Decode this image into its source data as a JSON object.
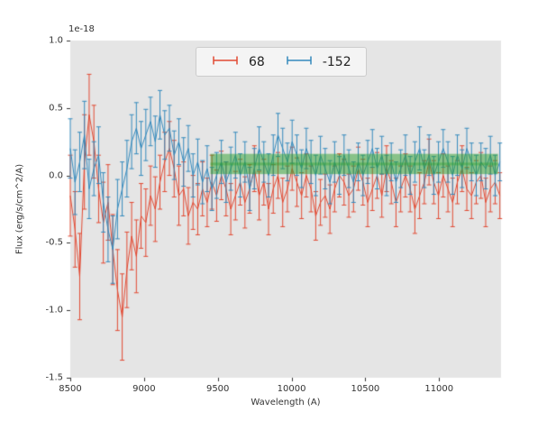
{
  "chart_data": {
    "type": "line",
    "subtype": "errorbar",
    "title": "",
    "xlabel": "Wavelength (A)",
    "ylabel": "Flux (erg/s/cm^2/A)",
    "offset_label": "1e-18",
    "xlim": [
      8500,
      11420
    ],
    "ylim": [
      -1.5,
      1.0
    ],
    "xticks": [
      8500,
      9000,
      9500,
      10000,
      10500,
      11000
    ],
    "xtick_labels": [
      "8500",
      "9000",
      "9500",
      "10000",
      "10500",
      "11000"
    ],
    "yticks": [
      -1.5,
      -1.0,
      -0.5,
      0.0,
      0.5,
      1.0
    ],
    "ytick_labels": [
      "-1.5",
      "-1.0",
      "-0.5",
      "0.0",
      "0.5",
      "1.0"
    ],
    "grid": false,
    "axes_background": "#e5e5e5",
    "legend_position": "upper center",
    "band": {
      "x0": 9450,
      "x1": 11400,
      "y0": 0.01,
      "y1": 0.16,
      "center_y": 0.085,
      "color": "#2ca02c",
      "alpha": 0.5
    },
    "x": [
      8500,
      8532,
      8564,
      8596,
      8628,
      8660,
      8692,
      8724,
      8756,
      8788,
      8820,
      8852,
      8884,
      8916,
      8948,
      8980,
      9012,
      9044,
      9076,
      9108,
      9140,
      9172,
      9204,
      9236,
      9268,
      9300,
      9332,
      9364,
      9396,
      9428,
      9460,
      9492,
      9524,
      9556,
      9588,
      9620,
      9652,
      9684,
      9716,
      9748,
      9780,
      9812,
      9844,
      9876,
      9908,
      9940,
      9972,
      10004,
      10036,
      10068,
      10100,
      10132,
      10164,
      10196,
      10228,
      10260,
      10292,
      10324,
      10356,
      10388,
      10420,
      10452,
      10484,
      10516,
      10548,
      10580,
      10612,
      10644,
      10676,
      10708,
      10740,
      10772,
      10804,
      10836,
      10868,
      10900,
      10932,
      10964,
      10996,
      11028,
      11060,
      11092,
      11124,
      11156,
      11188,
      11220,
      11252,
      11284,
      11316,
      11348,
      11380,
      11412
    ],
    "series": [
      {
        "name": "68",
        "color": "#e24a33",
        "y": [
          -0.15,
          -0.4,
          -0.75,
          0.1,
          0.45,
          0.25,
          -0.1,
          -0.35,
          -0.2,
          -0.55,
          -0.85,
          -1.05,
          -0.7,
          -0.45,
          -0.6,
          -0.3,
          -0.35,
          -0.15,
          -0.25,
          -0.05,
          0.1,
          0.2,
          0.05,
          -0.15,
          -0.1,
          -0.3,
          -0.2,
          -0.25,
          -0.1,
          -0.2,
          -0.05,
          -0.15,
          0.0,
          -0.1,
          -0.25,
          -0.15,
          -0.05,
          -0.2,
          -0.1,
          0.05,
          -0.15,
          -0.05,
          -0.25,
          -0.1,
          0.0,
          -0.2,
          -0.1,
          0.05,
          -0.05,
          -0.15,
          0.0,
          -0.1,
          -0.3,
          -0.2,
          -0.15,
          -0.25,
          -0.1,
          0.0,
          -0.05,
          -0.15,
          -0.1,
          0.05,
          -0.05,
          -0.2,
          -0.1,
          0.0,
          -0.15,
          0.05,
          -0.05,
          -0.2,
          -0.1,
          0.0,
          -0.1,
          -0.25,
          -0.15,
          -0.05,
          0.1,
          -0.05,
          -0.15,
          0.0,
          -0.1,
          -0.2,
          -0.05,
          0.05,
          -0.1,
          -0.15,
          -0.05,
          0.0,
          -0.2,
          -0.1,
          -0.05,
          -0.15
        ],
        "yerr": [
          0.3,
          0.28,
          0.32,
          0.35,
          0.3,
          0.27,
          0.25,
          0.3,
          0.28,
          0.26,
          0.3,
          0.32,
          0.28,
          0.25,
          0.27,
          0.24,
          0.25,
          0.22,
          0.24,
          0.2,
          0.22,
          0.2,
          0.21,
          0.22,
          0.2,
          0.21,
          0.2,
          0.19,
          0.2,
          0.18,
          0.2,
          0.19,
          0.18,
          0.2,
          0.19,
          0.18,
          0.17,
          0.19,
          0.18,
          0.17,
          0.18,
          0.17,
          0.19,
          0.18,
          0.17,
          0.18,
          0.17,
          0.16,
          0.18,
          0.17,
          0.16,
          0.17,
          0.18,
          0.17,
          0.16,
          0.18,
          0.17,
          0.16,
          0.17,
          0.16,
          0.17,
          0.16,
          0.17,
          0.18,
          0.16,
          0.17,
          0.16,
          0.17,
          0.16,
          0.18,
          0.17,
          0.16,
          0.17,
          0.18,
          0.17,
          0.16,
          0.17,
          0.16,
          0.17,
          0.16,
          0.17,
          0.18,
          0.16,
          0.17,
          0.16,
          0.17,
          0.16,
          0.17,
          0.18,
          0.17,
          0.16,
          0.17
        ]
      },
      {
        "name": "-152",
        "color": "#348abd",
        "y": [
          0.2,
          -0.05,
          0.1,
          0.3,
          -0.1,
          0.05,
          0.15,
          -0.2,
          -0.4,
          -0.55,
          -0.25,
          -0.1,
          0.05,
          0.25,
          0.35,
          0.2,
          0.3,
          0.4,
          0.25,
          0.45,
          0.3,
          0.35,
          0.15,
          0.25,
          0.1,
          0.2,
          0.0,
          0.1,
          -0.05,
          0.05,
          -0.1,
          0.0,
          0.1,
          -0.05,
          0.05,
          0.15,
          0.0,
          0.1,
          -0.1,
          0.05,
          0.2,
          0.1,
          0.0,
          0.15,
          0.3,
          0.2,
          0.1,
          0.25,
          0.15,
          0.05,
          0.2,
          0.1,
          0.0,
          0.15,
          0.05,
          -0.05,
          0.1,
          0.0,
          0.15,
          0.05,
          -0.05,
          0.1,
          0.0,
          0.1,
          0.2,
          0.05,
          0.15,
          0.0,
          0.1,
          -0.05,
          0.05,
          0.15,
          0.0,
          0.1,
          0.2,
          0.05,
          0.15,
          0.0,
          0.1,
          0.2,
          0.1,
          0.0,
          0.15,
          0.05,
          0.2,
          0.1,
          0.0,
          0.1,
          0.05,
          0.15,
          0.0,
          0.1
        ],
        "yerr": [
          0.22,
          0.24,
          0.22,
          0.25,
          0.22,
          0.2,
          0.21,
          0.22,
          0.24,
          0.25,
          0.22,
          0.2,
          0.21,
          0.2,
          0.19,
          0.2,
          0.19,
          0.18,
          0.19,
          0.18,
          0.18,
          0.17,
          0.18,
          0.17,
          0.18,
          0.17,
          0.16,
          0.17,
          0.16,
          0.17,
          0.16,
          0.17,
          0.16,
          0.15,
          0.16,
          0.17,
          0.16,
          0.15,
          0.16,
          0.15,
          0.16,
          0.15,
          0.16,
          0.15,
          0.16,
          0.15,
          0.14,
          0.16,
          0.15,
          0.14,
          0.15,
          0.16,
          0.15,
          0.14,
          0.15,
          0.16,
          0.15,
          0.14,
          0.15,
          0.14,
          0.15,
          0.14,
          0.15,
          0.16,
          0.14,
          0.15,
          0.14,
          0.15,
          0.14,
          0.15,
          0.14,
          0.15,
          0.14,
          0.15,
          0.16,
          0.14,
          0.15,
          0.14,
          0.15,
          0.14,
          0.15,
          0.14,
          0.15,
          0.14,
          0.15,
          0.14,
          0.15,
          0.14,
          0.15,
          0.14,
          0.15,
          0.14
        ]
      }
    ],
    "legend": {
      "items": [
        "68",
        "-152"
      ]
    }
  }
}
